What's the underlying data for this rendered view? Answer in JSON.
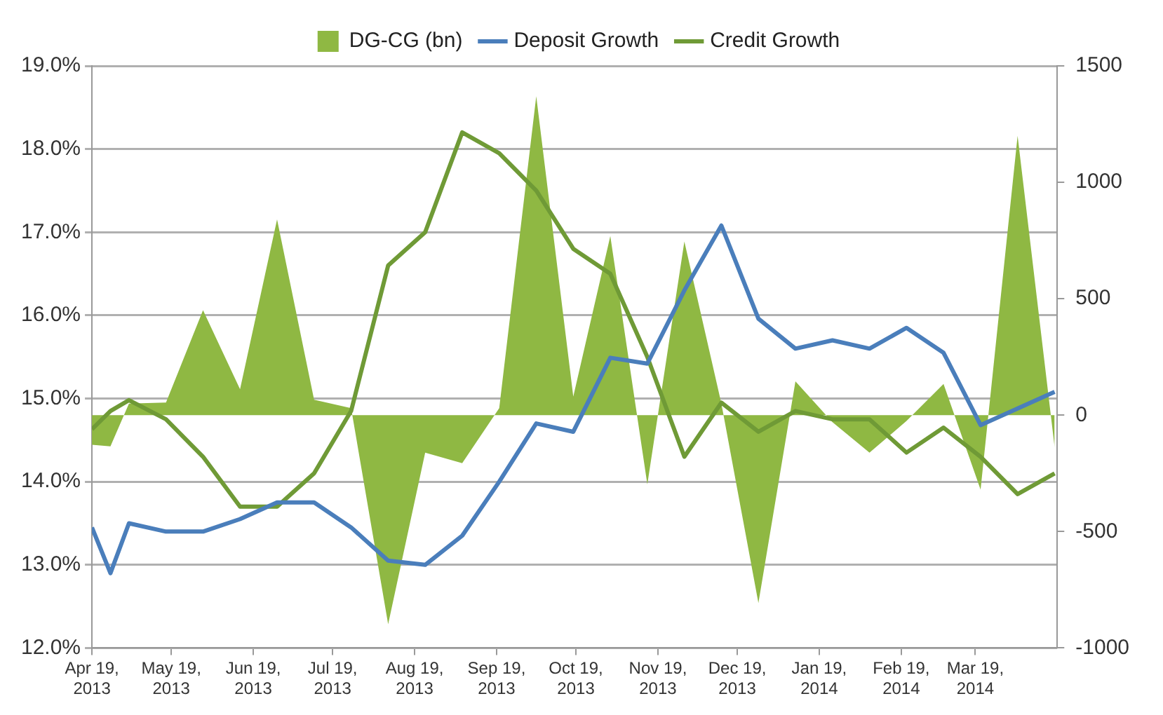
{
  "chart_data": {
    "type": "line",
    "x": [
      "2013-04-19",
      "2013-04-26",
      "2013-05-03",
      "2013-05-17",
      "2013-05-31",
      "2013-06-14",
      "2013-06-28",
      "2013-07-12",
      "2013-07-26",
      "2013-08-09",
      "2013-08-23",
      "2013-09-06",
      "2013-09-20",
      "2013-10-04",
      "2013-10-18",
      "2013-11-01",
      "2013-11-15",
      "2013-11-29",
      "2013-12-13",
      "2013-12-27",
      "2014-01-10",
      "2014-01-24",
      "2014-02-07",
      "2014-02-21",
      "2014-03-07",
      "2014-03-21",
      "2014-04-04",
      "2014-04-18"
    ],
    "series": [
      {
        "name": "DG-CG (bn)",
        "type": "area",
        "axis": "y2",
        "color": "#8fb843",
        "values": [
          -127,
          -134,
          50,
          54,
          451,
          111,
          841,
          66,
          30,
          -898,
          -161,
          -206,
          30,
          1370,
          80,
          769,
          -297,
          746,
          50,
          -807,
          145,
          -30,
          -161,
          -25,
          134,
          -320,
          1200,
          -138
        ]
      },
      {
        "name": "Deposit Growth",
        "type": "line",
        "color": "#4a7ebb",
        "values": [
          13.45,
          12.9,
          13.5,
          13.4,
          13.4,
          13.55,
          13.75,
          13.75,
          13.45,
          13.05,
          13.0,
          13.35,
          14.0,
          14.7,
          14.6,
          15.49,
          15.42,
          16.3,
          17.08,
          15.96,
          15.6,
          15.7,
          15.6,
          15.85,
          15.55,
          14.68,
          14.88,
          15.08
        ]
      },
      {
        "name": "Credit Growth",
        "type": "line",
        "color": "#6f9a36",
        "values": [
          14.63,
          14.85,
          14.98,
          14.75,
          14.3,
          13.7,
          13.7,
          14.1,
          14.85,
          16.6,
          17.0,
          18.2,
          17.95,
          17.5,
          16.8,
          16.5,
          15.5,
          14.3,
          14.95,
          14.6,
          14.85,
          14.75,
          14.75,
          14.35,
          14.65,
          14.3,
          13.85,
          14.1
        ]
      }
    ],
    "xlim": [
      "2013-04-19",
      "2014-04-19"
    ],
    "xticks": [
      {
        "value": "2013-04-19",
        "label": "Apr 19, 2013"
      },
      {
        "value": "2013-05-19",
        "label": "May 19, 2013"
      },
      {
        "value": "2013-06-19",
        "label": "Jun 19, 2013"
      },
      {
        "value": "2013-07-19",
        "label": "Jul 19, 2013"
      },
      {
        "value": "2013-08-19",
        "label": "Aug 19, 2013"
      },
      {
        "value": "2013-09-19",
        "label": "Sep 19, 2013"
      },
      {
        "value": "2013-10-19",
        "label": "Oct 19, 2013"
      },
      {
        "value": "2013-11-19",
        "label": "Nov 19, 2013"
      },
      {
        "value": "2013-12-19",
        "label": "Dec 19, 2013"
      },
      {
        "value": "2014-01-19",
        "label": "Jan 19, 2014"
      },
      {
        "value": "2014-02-19",
        "label": "Feb 19, 2014"
      },
      {
        "value": "2014-03-19",
        "label": "Mar 19, 2014"
      }
    ],
    "ylim": [
      12,
      19
    ],
    "yticks": [
      {
        "value": 12,
        "label": "12.0%"
      },
      {
        "value": 13,
        "label": "13.0%"
      },
      {
        "value": 14,
        "label": "14.0%"
      },
      {
        "value": 15,
        "label": "15.0%"
      },
      {
        "value": 16,
        "label": "16.0%"
      },
      {
        "value": 17,
        "label": "17.0%"
      },
      {
        "value": 18,
        "label": "18.0%"
      },
      {
        "value": 19,
        "label": "19.0%"
      }
    ],
    "y2lim": [
      -1000,
      1500
    ],
    "y2ticks": [
      -1000,
      -500,
      0,
      500,
      1000,
      1500
    ],
    "grid": "y",
    "legend": "top",
    "line_style": "solid"
  }
}
